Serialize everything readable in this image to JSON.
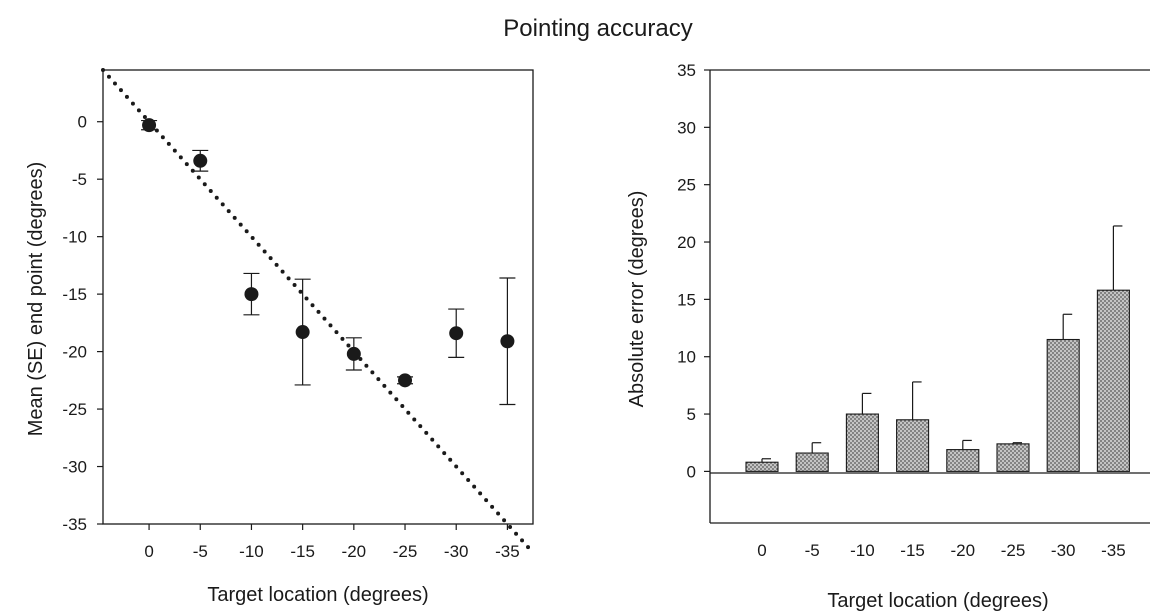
{
  "figure": {
    "title": "Pointing accuracy"
  },
  "chart_data": [
    {
      "type": "scatter",
      "xlabel": "Target location (degrees)",
      "ylabel": "Mean (SE) end point (degrees)",
      "x_categories": [
        "0",
        "-5",
        "-10",
        "-15",
        "-20",
        "-25",
        "-30",
        "-35"
      ],
      "x": [
        0,
        -5,
        -10,
        -15,
        -20,
        -25,
        -30,
        -35
      ],
      "y": [
        -0.3,
        -3.4,
        -15.0,
        -18.3,
        -20.2,
        -22.5,
        -18.4,
        -19.1
      ],
      "error": [
        0.4,
        0.9,
        1.8,
        4.6,
        1.4,
        0.3,
        2.1,
        5.5
      ],
      "error_type": "SE",
      "xlim": [
        4.5,
        -37.5
      ],
      "ylim": [
        -35,
        4.5
      ],
      "yticks": [
        0,
        -5,
        -10,
        -15,
        -20,
        -25,
        -30,
        -35
      ],
      "reference_line": {
        "style": "dotted",
        "description": "identity y = x",
        "x": [
          4.5,
          -37.5
        ],
        "y": [
          4.5,
          -37.5
        ]
      },
      "marker_color": "#1a1a1a",
      "grid": false,
      "legend": "none"
    },
    {
      "type": "bar",
      "xlabel": "Target location (degrees)",
      "ylabel": "Absolute error (degrees)",
      "categories": [
        "0",
        "-5",
        "-10",
        "-15",
        "-20",
        "-25",
        "-30",
        "-35"
      ],
      "values": [
        0.8,
        1.6,
        5.0,
        4.5,
        1.9,
        2.4,
        11.5,
        15.8
      ],
      "error": [
        0.3,
        0.9,
        1.8,
        3.3,
        0.8,
        0.1,
        2.2,
        5.6
      ],
      "ylim": [
        -4.5,
        35
      ],
      "yticks": [
        0,
        5,
        10,
        15,
        20,
        25,
        30,
        35
      ],
      "bar_fill": "#b8b8b8",
      "bar_pattern": "dotted",
      "grid": false,
      "legend": "none"
    }
  ]
}
